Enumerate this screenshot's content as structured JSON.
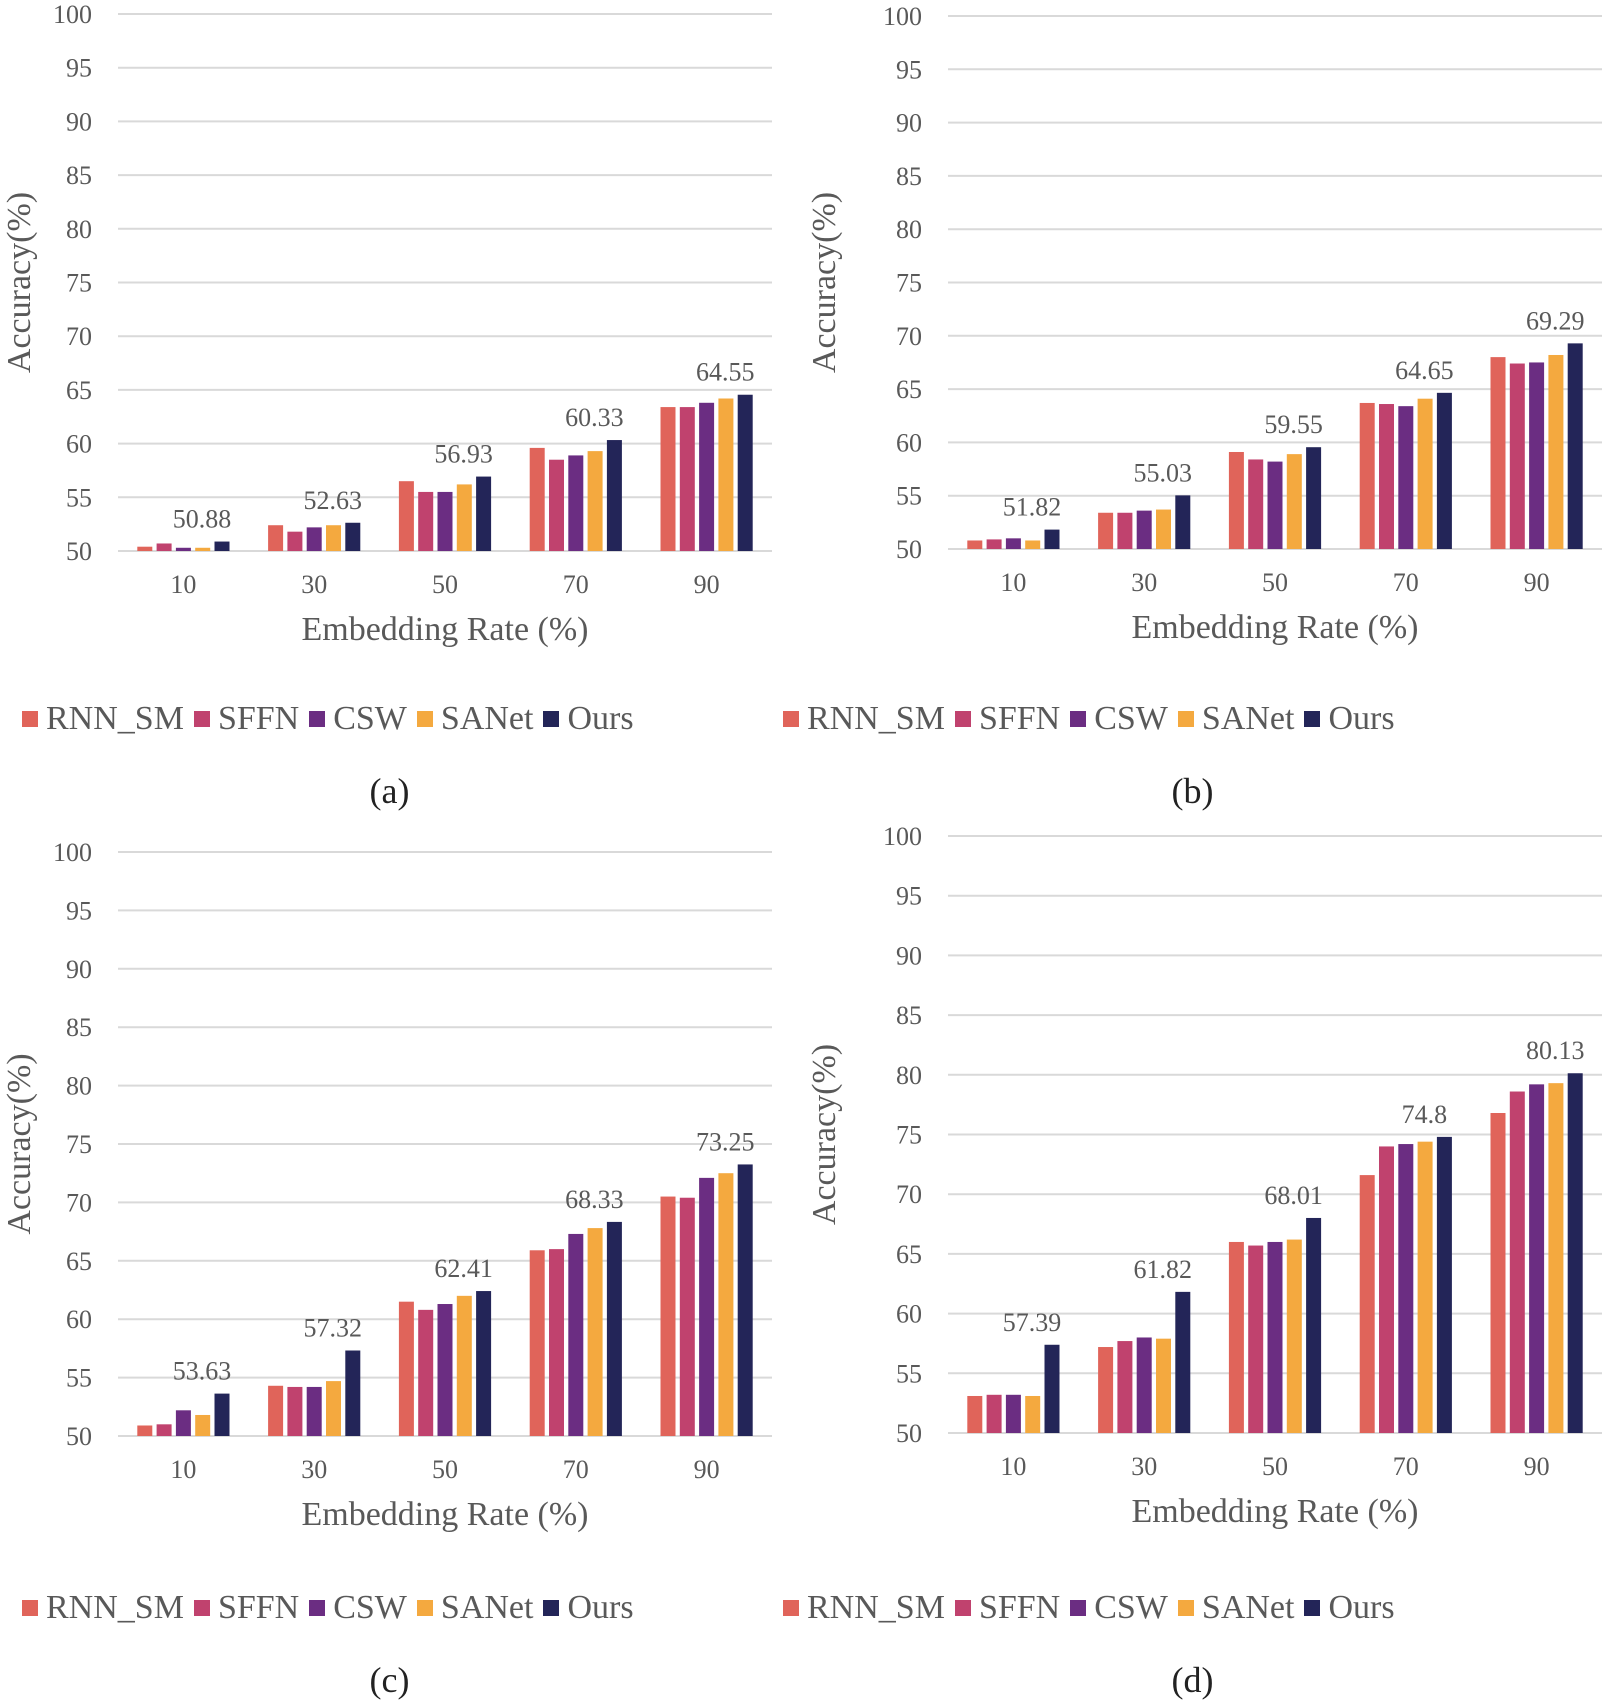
{
  "legend": {
    "series": [
      {
        "name": "RNN_SM",
        "color": "#e0645a"
      },
      {
        "name": "SFFN",
        "color": "#c0426e"
      },
      {
        "name": "CSW",
        "color": "#6b2d82"
      },
      {
        "name": "SANet",
        "color": "#f4a93f"
      },
      {
        "name": "Ours",
        "color": "#232558"
      }
    ]
  },
  "chart_data": [
    {
      "type": "bar",
      "caption": "(a)",
      "xlabel": "Embedding Rate (%)",
      "ylabel": "Accuracy(%)",
      "ylim": [
        50,
        100
      ],
      "yticks": [
        "50",
        "55",
        "60",
        "65",
        "70",
        "75",
        "80",
        "85",
        "90",
        "95",
        "100"
      ],
      "categories": [
        "10",
        "30",
        "50",
        "70",
        "90"
      ],
      "series": [
        {
          "name": "RNN_SM",
          "values": [
            50.4,
            52.4,
            56.5,
            59.6,
            63.4
          ]
        },
        {
          "name": "SFFN",
          "values": [
            50.7,
            51.8,
            55.5,
            58.5,
            63.4
          ]
        },
        {
          "name": "CSW",
          "values": [
            50.3,
            52.2,
            55.5,
            58.9,
            63.8
          ]
        },
        {
          "name": "SANet",
          "values": [
            50.3,
            52.4,
            56.2,
            59.3,
            64.2
          ]
        },
        {
          "name": "Ours",
          "values": [
            50.88,
            52.63,
            56.93,
            60.33,
            64.55
          ]
        }
      ],
      "annotations": [
        "50.88",
        "52.63",
        "56.93",
        "60.33",
        "64.55"
      ]
    },
    {
      "type": "bar",
      "caption": "(b)",
      "xlabel": "Embedding Rate (%)",
      "ylabel": "Accuracy(%)",
      "ylim": [
        50,
        100
      ],
      "yticks": [
        "50",
        "55",
        "60",
        "65",
        "70",
        "75",
        "80",
        "85",
        "90",
        "95",
        "100"
      ],
      "categories": [
        "10",
        "30",
        "50",
        "70",
        "90"
      ],
      "series": [
        {
          "name": "RNN_SM",
          "values": [
            50.8,
            53.4,
            59.1,
            63.7,
            68.0
          ]
        },
        {
          "name": "SFFN",
          "values": [
            50.9,
            53.4,
            58.4,
            63.6,
            67.4
          ]
        },
        {
          "name": "CSW",
          "values": [
            51.0,
            53.6,
            58.2,
            63.4,
            67.5
          ]
        },
        {
          "name": "SANet",
          "values": [
            50.8,
            53.7,
            58.9,
            64.1,
            68.2
          ]
        },
        {
          "name": "Ours",
          "values": [
            51.82,
            55.03,
            59.55,
            64.65,
            69.29
          ]
        }
      ],
      "annotations": [
        "51.82",
        "55.03",
        "59.55",
        "64.65",
        "69.29"
      ]
    },
    {
      "type": "bar",
      "caption": "(c)",
      "xlabel": "Embedding Rate (%)",
      "ylabel": "Accuracy(%)",
      "ylim": [
        50,
        100
      ],
      "yticks": [
        "50",
        "55",
        "60",
        "65",
        "70",
        "75",
        "80",
        "85",
        "90",
        "95",
        "100"
      ],
      "categories": [
        "10",
        "30",
        "50",
        "70",
        "90"
      ],
      "series": [
        {
          "name": "RNN_SM",
          "values": [
            50.9,
            54.3,
            61.5,
            65.9,
            70.5
          ]
        },
        {
          "name": "SFFN",
          "values": [
            51.0,
            54.2,
            60.8,
            66.0,
            70.4
          ]
        },
        {
          "name": "CSW",
          "values": [
            52.2,
            54.2,
            61.3,
            67.3,
            72.1
          ]
        },
        {
          "name": "SANet",
          "values": [
            51.8,
            54.7,
            62.0,
            67.8,
            72.5
          ]
        },
        {
          "name": "Ours",
          "values": [
            53.63,
            57.32,
            62.41,
            68.33,
            73.25
          ]
        }
      ],
      "annotations": [
        "53.63",
        "57.32",
        "62.41",
        "68.33",
        "73.25"
      ]
    },
    {
      "type": "bar",
      "caption": "(d)",
      "xlabel": "Embedding Rate (%)",
      "ylabel": "Accuracy(%)",
      "ylim": [
        50,
        100
      ],
      "yticks": [
        "50",
        "55",
        "60",
        "65",
        "70",
        "75",
        "80",
        "85",
        "90",
        "95",
        "100"
      ],
      "categories": [
        "10",
        "30",
        "50",
        "70",
        "90"
      ],
      "series": [
        {
          "name": "RNN_SM",
          "values": [
            53.1,
            57.2,
            66.0,
            71.6,
            76.8
          ]
        },
        {
          "name": "SFFN",
          "values": [
            53.2,
            57.7,
            65.7,
            74.0,
            78.6
          ]
        },
        {
          "name": "CSW",
          "values": [
            53.2,
            58.0,
            66.0,
            74.2,
            79.2
          ]
        },
        {
          "name": "SANet",
          "values": [
            53.1,
            57.9,
            66.2,
            74.4,
            79.3
          ]
        },
        {
          "name": "Ours",
          "values": [
            57.39,
            61.82,
            68.01,
            74.8,
            80.13
          ]
        }
      ],
      "annotations": [
        "57.39",
        "61.82",
        "68.01",
        "74.8",
        "80.13"
      ]
    }
  ]
}
